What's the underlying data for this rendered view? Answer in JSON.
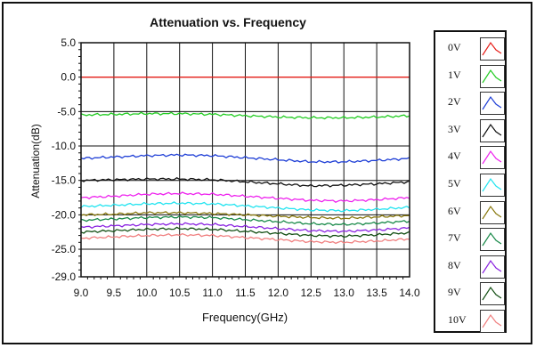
{
  "chart_data": {
    "type": "line",
    "title": "Attenuation vs. Frequency",
    "xlabel": "Frequency(GHz)",
    "ylabel": "Attenuation(dB)",
    "xlim": [
      9.0,
      14.0
    ],
    "ylim": [
      -29.0,
      5.0
    ],
    "xticks": [
      "9.0",
      "9.5",
      "10.0",
      "10.5",
      "11.0",
      "11.5",
      "12.0",
      "12.5",
      "13.0",
      "13.5",
      "14.0"
    ],
    "yticks": [
      "5.0",
      "0.0",
      "-5.0",
      "-10.0",
      "-15.0",
      "-20.0",
      "-25.0",
      "-29.0"
    ],
    "ytick_values": [
      5,
      0,
      -5,
      -10,
      -15,
      -20,
      -25,
      -29
    ],
    "grid": true,
    "legend_position": "right",
    "x": [
      9.0,
      9.5,
      10.0,
      10.5,
      11.0,
      11.5,
      12.0,
      12.5,
      13.0,
      13.5,
      14.0
    ],
    "series": [
      {
        "name": "0V",
        "color": "#e8201a",
        "values": [
          0.0,
          0.0,
          0.0,
          0.0,
          0.0,
          0.0,
          0.0,
          0.0,
          0.0,
          0.0,
          0.0
        ]
      },
      {
        "name": "1V",
        "color": "#22cc22",
        "values": [
          -5.5,
          -5.4,
          -5.3,
          -5.3,
          -5.4,
          -5.6,
          -5.8,
          -5.9,
          -5.9,
          -5.8,
          -5.6
        ]
      },
      {
        "name": "2V",
        "color": "#1f3fd6",
        "values": [
          -11.8,
          -11.6,
          -11.4,
          -11.3,
          -11.4,
          -11.7,
          -12.0,
          -12.3,
          -12.3,
          -12.1,
          -11.8
        ]
      },
      {
        "name": "3V",
        "color": "#111111",
        "values": [
          -15.0,
          -14.9,
          -14.8,
          -14.8,
          -14.9,
          -15.2,
          -15.5,
          -15.8,
          -15.7,
          -15.5,
          -15.2
        ]
      },
      {
        "name": "4V",
        "color": "#ee22ee",
        "values": [
          -17.5,
          -17.3,
          -17.0,
          -16.9,
          -17.0,
          -17.3,
          -17.6,
          -17.9,
          -18.0,
          -17.8,
          -17.5
        ]
      },
      {
        "name": "5V",
        "color": "#22e4f0",
        "values": [
          -18.8,
          -18.6,
          -18.4,
          -18.3,
          -18.4,
          -18.7,
          -19.0,
          -19.3,
          -19.4,
          -19.2,
          -18.9
        ]
      },
      {
        "name": "6V",
        "color": "#8a7a10",
        "values": [
          -20.0,
          -19.9,
          -19.7,
          -19.7,
          -19.8,
          -20.0,
          -20.2,
          -20.4,
          -20.5,
          -20.3,
          -20.1
        ]
      },
      {
        "name": "7V",
        "color": "#1a8a4a",
        "values": [
          -20.8,
          -20.6,
          -20.4,
          -20.3,
          -20.4,
          -20.7,
          -21.0,
          -21.3,
          -21.4,
          -21.2,
          -20.9
        ]
      },
      {
        "name": "8V",
        "color": "#8a22e0",
        "values": [
          -21.8,
          -21.6,
          -21.4,
          -21.3,
          -21.4,
          -21.7,
          -22.0,
          -22.3,
          -22.4,
          -22.2,
          -21.9
        ]
      },
      {
        "name": "9V",
        "color": "#155015",
        "values": [
          -22.5,
          -22.3,
          -22.1,
          -22.0,
          -22.1,
          -22.4,
          -22.7,
          -23.0,
          -23.1,
          -22.9,
          -22.6
        ]
      },
      {
        "name": "10V",
        "color": "#f08080",
        "values": [
          -23.4,
          -23.2,
          -23.0,
          -22.9,
          -23.0,
          -23.3,
          -23.6,
          -23.9,
          -24.0,
          -23.8,
          -23.5
        ]
      }
    ]
  }
}
